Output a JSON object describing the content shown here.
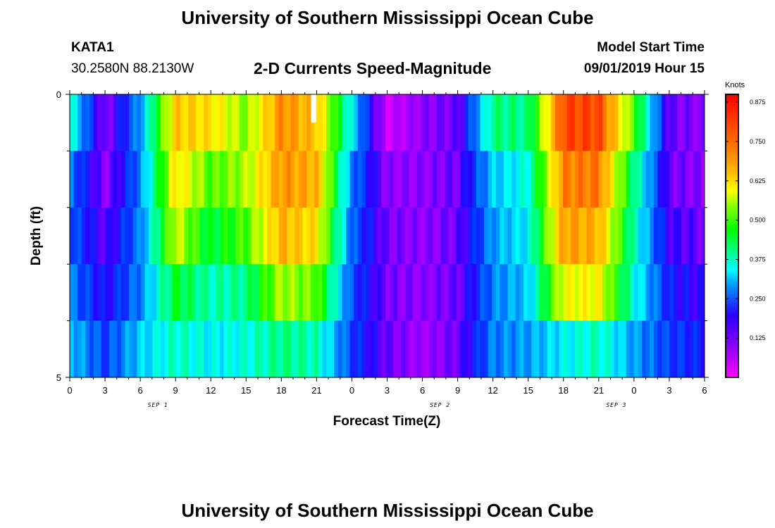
{
  "page": {
    "title": "University of Southern Mississippi Ocean Cube",
    "footer_title": "University of Southern Mississippi Ocean Cube",
    "station": "KATA1",
    "coords": "30.2580N 88.2130W",
    "model_start_label": "Model Start Time",
    "model_start_value": "09/01/2019 Hour 15"
  },
  "colors": {
    "palette": [
      "#ff00ff",
      "#c000ff",
      "#8a00ff",
      "#2a00ff",
      "#0040ff",
      "#00a0ff",
      "#00ffff",
      "#00ff80",
      "#00ff00",
      "#80ff00",
      "#ffff00",
      "#ffc000",
      "#ff8000",
      "#ff4000",
      "#ff0000"
    ]
  },
  "chart_data": {
    "type": "heatmap",
    "title": "2-D Currents Speed-Magnitude",
    "xlabel": "Forecast Time(Z)",
    "ylabel": "Depth (ft)",
    "x_tick_labels": [
      "0",
      "3",
      "6",
      "9",
      "12",
      "15",
      "18",
      "21",
      "0",
      "3",
      "6",
      "9",
      "12",
      "15",
      "18",
      "21",
      "0",
      "3",
      "6"
    ],
    "x_date_labels": [
      {
        "text": "SEP 1",
        "tick_index": 2.5
      },
      {
        "text": "SEP 2",
        "tick_index": 10.5
      },
      {
        "text": "SEP 3",
        "tick_index": 15.5
      }
    ],
    "y_tick_labels": [
      "0",
      "5"
    ],
    "ylim": [
      0,
      5
    ],
    "xlim_hours": [
      0,
      54
    ],
    "colorbar": {
      "unit": "Knots",
      "range": [
        0,
        0.9
      ],
      "labels": [
        "0.875",
        "0.750",
        "0.625",
        "0.500",
        "0.375",
        "0.250",
        "0.125"
      ],
      "label_values": [
        0.875,
        0.75,
        0.625,
        0.5,
        0.375,
        0.25,
        0.125
      ]
    },
    "depth_rows": [
      0,
      1,
      2,
      3,
      4
    ],
    "hours": [
      0,
      3,
      6,
      9,
      12,
      15,
      18,
      21,
      24,
      27,
      30,
      33,
      36,
      39,
      42,
      45,
      48,
      51,
      54
    ],
    "values": [
      [
        0.42,
        0.12,
        0.32,
        0.7,
        0.67,
        0.58,
        0.76,
        0.7,
        0.38,
        0.05,
        0.12,
        0.15,
        0.45,
        0.45,
        0.83,
        0.83,
        0.55,
        0.15,
        0.12
      ],
      [
        0.3,
        0.12,
        0.3,
        0.67,
        0.55,
        0.6,
        0.75,
        0.72,
        0.3,
        0.12,
        0.12,
        0.15,
        0.35,
        0.4,
        0.77,
        0.78,
        0.45,
        0.15,
        0.12
      ],
      [
        0.28,
        0.16,
        0.3,
        0.62,
        0.48,
        0.55,
        0.72,
        0.67,
        0.28,
        0.14,
        0.12,
        0.15,
        0.32,
        0.38,
        0.74,
        0.72,
        0.42,
        0.18,
        0.15
      ],
      [
        0.3,
        0.2,
        0.3,
        0.5,
        0.42,
        0.45,
        0.6,
        0.56,
        0.26,
        0.14,
        0.12,
        0.15,
        0.3,
        0.35,
        0.64,
        0.65,
        0.4,
        0.22,
        0.18
      ],
      [
        0.35,
        0.25,
        0.35,
        0.42,
        0.38,
        0.4,
        0.45,
        0.42,
        0.25,
        0.15,
        0.1,
        0.15,
        0.3,
        0.32,
        0.38,
        0.42,
        0.32,
        0.25,
        0.22
      ]
    ],
    "missing_cell": {
      "hour": 20,
      "depth_row": 0
    }
  }
}
